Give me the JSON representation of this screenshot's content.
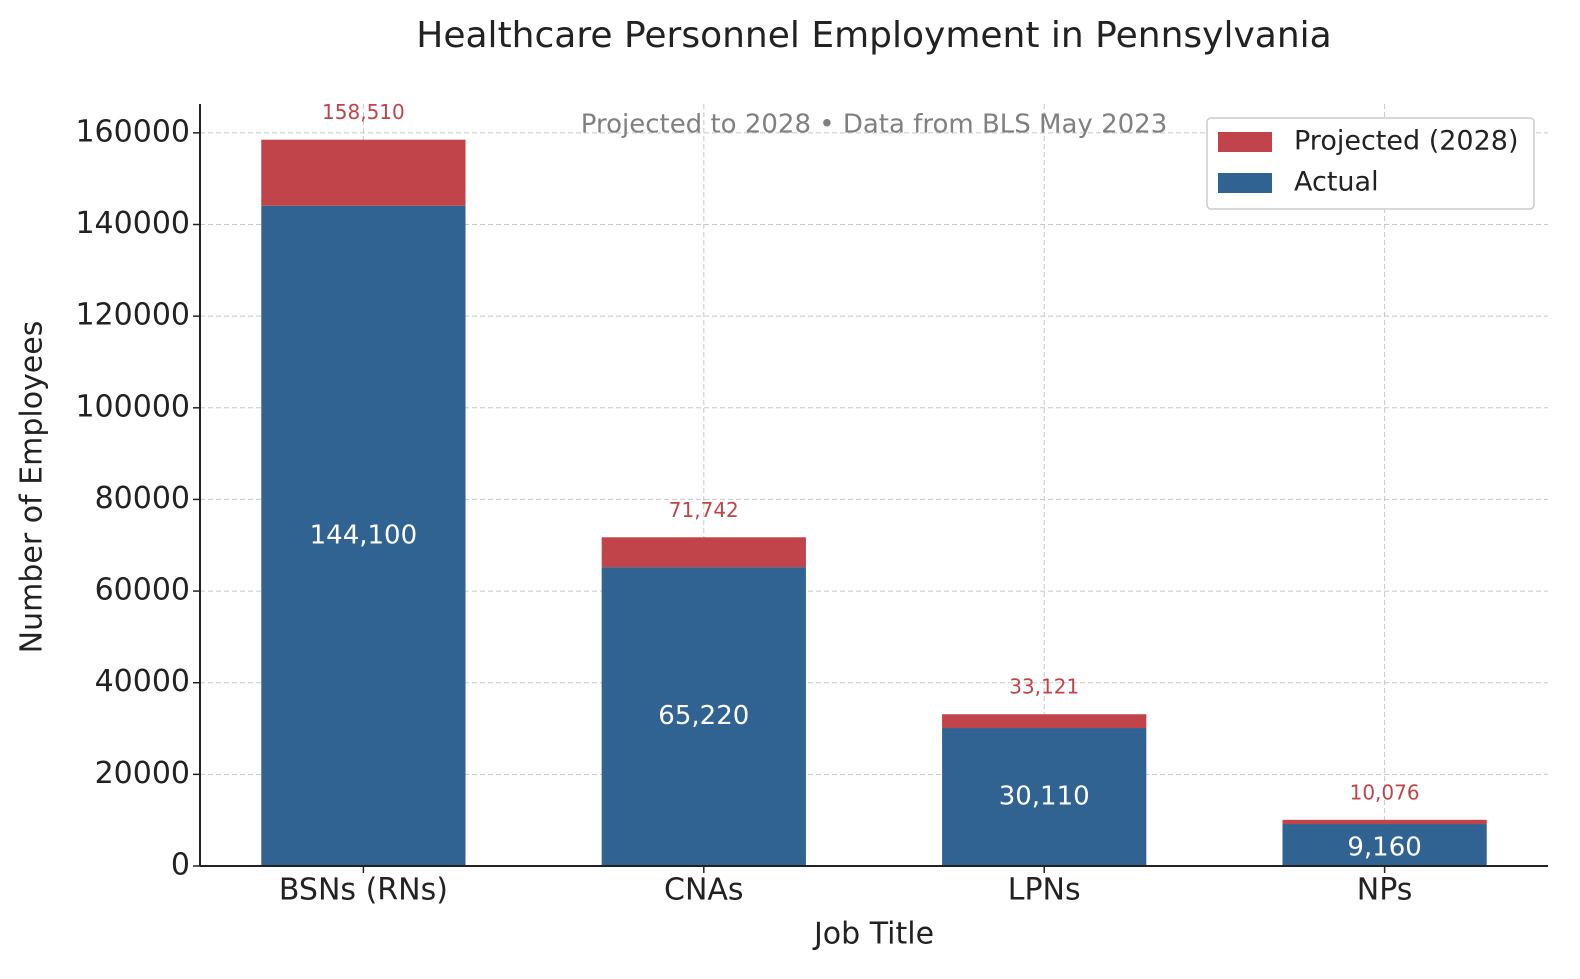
{
  "chart_data": {
    "type": "stacked-bar",
    "title": "Healthcare Personnel Employment in Pennsylvania",
    "subtitle": "Projected to 2028 • Data from BLS May 2023",
    "x_label": "Job Title",
    "y_label": "Number of Employees",
    "categories": [
      "BSNs (RNs)",
      "CNAs",
      "LPNs",
      "NPs"
    ],
    "series": [
      {
        "name": "Actual",
        "color": "#306392",
        "values": [
          144100,
          65220,
          30110,
          9160
        ],
        "value_labels": [
          "144,100",
          "65,220",
          "30,110",
          "9,160"
        ]
      },
      {
        "name": "Projected (2028)",
        "color": "#c0444a",
        "values": [
          14410,
          6522,
          3011,
          916
        ]
      }
    ],
    "total_labels": [
      "158,510",
      "71,742",
      "33,121",
      "10,076"
    ],
    "ylim": [
      0,
      166300
    ],
    "yticks": [
      0,
      20000,
      40000,
      60000,
      80000,
      100000,
      120000,
      140000,
      160000
    ],
    "grid": true,
    "legend": "upper right"
  }
}
